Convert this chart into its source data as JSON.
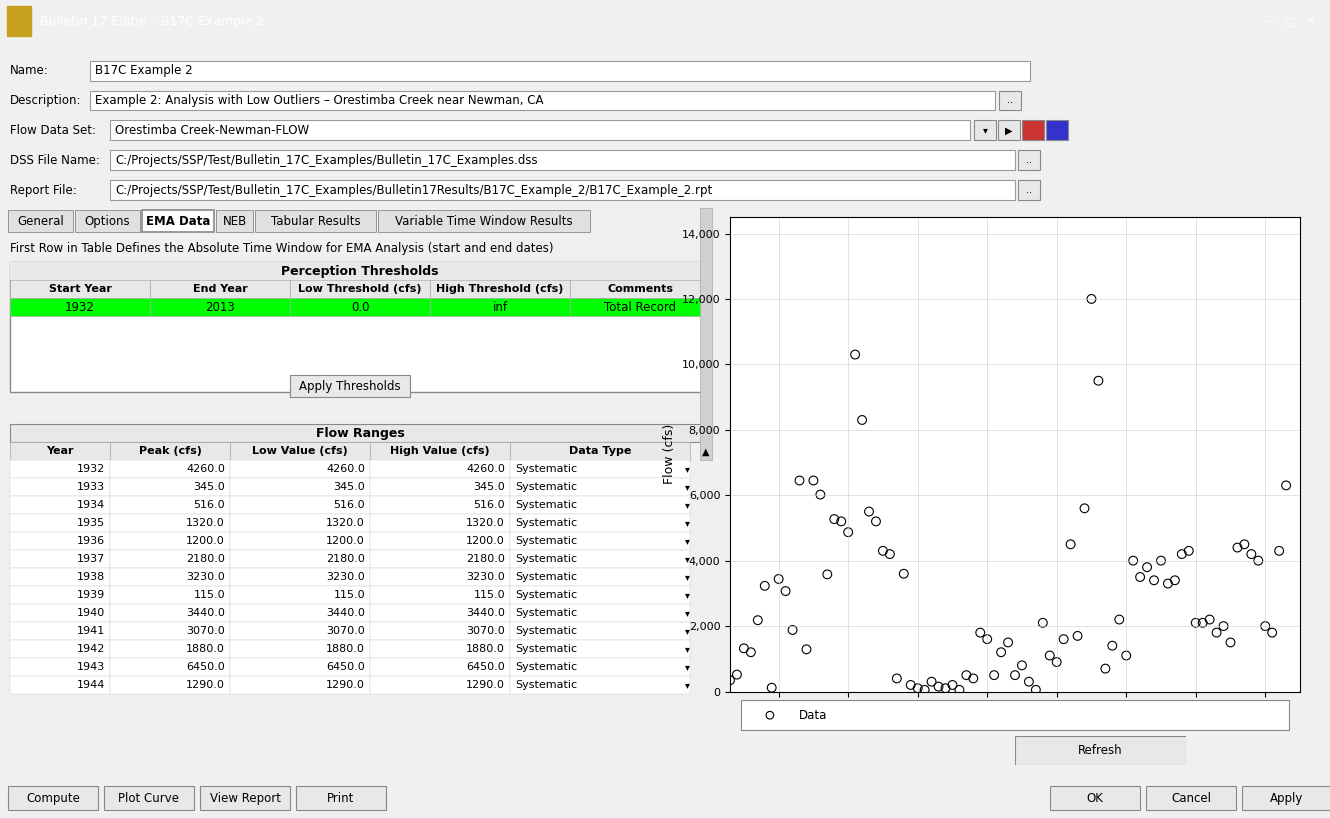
{
  "title_bar": "Bulletin 17 Editor - B17C Example 2",
  "name_value": "B17C Example 2",
  "description_value": "Example 2: Analysis with Low Outliers – Orestimba Creek near Newman, CA",
  "flow_dataset_value": "Orestimba Creek-Newman-FLOW",
  "dss_file_value": "C:/Projects/SSP/Test/Bulletin_17C_Examples/Bulletin_17C_Examples.dss",
  "report_file_value": "C:/Projects/SSP/Test/Bulletin_17C_Examples/Bulletin17Results/B17C_Example_2/B17C_Example_2.rpt",
  "tabs": [
    "General",
    "Options",
    "EMA Data",
    "NEB",
    "Tabular Results",
    "Variable Time Window Results"
  ],
  "active_tab": "EMA Data",
  "table_header": "Perception Thresholds",
  "col_headers_top": [
    "Start Year",
    "End Year",
    "Low Threshold (cfs)",
    "High Threshold (cfs)",
    "Comments"
  ],
  "table_row": [
    "1932",
    "2013",
    "0.0",
    "inf",
    "Total Record"
  ],
  "flow_ranges_header": "Flow Ranges",
  "flow_col_headers": [
    "Year",
    "Peak (cfs)",
    "Low Value (cfs)",
    "High Value (cfs)",
    "Data Type"
  ],
  "flow_data": [
    [
      1932,
      4260.0,
      4260.0,
      4260.0,
      "Systematic"
    ],
    [
      1933,
      345.0,
      345.0,
      345.0,
      "Systematic"
    ],
    [
      1934,
      516.0,
      516.0,
      516.0,
      "Systematic"
    ],
    [
      1935,
      1320.0,
      1320.0,
      1320.0,
      "Systematic"
    ],
    [
      1936,
      1200.0,
      1200.0,
      1200.0,
      "Systematic"
    ],
    [
      1937,
      2180.0,
      2180.0,
      2180.0,
      "Systematic"
    ],
    [
      1938,
      3230.0,
      3230.0,
      3230.0,
      "Systematic"
    ],
    [
      1939,
      115.0,
      115.0,
      115.0,
      "Systematic"
    ],
    [
      1940,
      3440.0,
      3440.0,
      3440.0,
      "Systematic"
    ],
    [
      1941,
      3070.0,
      3070.0,
      3070.0,
      "Systematic"
    ],
    [
      1942,
      1880.0,
      1880.0,
      1880.0,
      "Systematic"
    ],
    [
      1943,
      6450.0,
      6450.0,
      6450.0,
      "Systematic"
    ],
    [
      1944,
      1290.0,
      1290.0,
      1290.0,
      "Systematic"
    ]
  ],
  "scatter_data": {
    "years": [
      1932,
      1933,
      1934,
      1935,
      1936,
      1937,
      1938,
      1939,
      1940,
      1941,
      1942,
      1943,
      1944,
      1945,
      1946,
      1947,
      1948,
      1949,
      1950,
      1951,
      1952,
      1953,
      1954,
      1955,
      1956,
      1957,
      1958,
      1959,
      1960,
      1961,
      1962,
      1963,
      1964,
      1965,
      1966,
      1967,
      1968,
      1969,
      1970,
      1971,
      1972,
      1973,
      1974,
      1975,
      1976,
      1977,
      1978,
      1979,
      1980,
      1981,
      1982,
      1983,
      1984,
      1985,
      1986,
      1987,
      1988,
      1989,
      1990,
      1991,
      1992,
      1993,
      1994,
      1995,
      1996,
      1997,
      1998,
      1999,
      2000,
      2001,
      2002,
      2003,
      2004,
      2005,
      2006,
      2007,
      2008,
      2009,
      2010,
      2011,
      2012,
      2013
    ],
    "flows": [
      4260,
      345,
      516,
      1320,
      1200,
      2180,
      3230,
      115,
      3440,
      3070,
      1880,
      6450,
      1290,
      6450,
      6020,
      3580,
      5270,
      5200,
      4870,
      10300,
      8300,
      5500,
      5200,
      4300,
      4200,
      400,
      3600,
      200,
      100,
      50,
      300,
      150,
      100,
      200,
      50,
      500,
      400,
      1800,
      1600,
      500,
      1200,
      1500,
      500,
      800,
      300,
      50,
      2100,
      1100,
      900,
      1600,
      4500,
      1700,
      5600,
      12000,
      9500,
      700,
      1400,
      2200,
      1100,
      4000,
      3500,
      3800,
      3400,
      4000,
      3300,
      3400,
      4200,
      4300,
      2100,
      2100,
      2200,
      1800,
      2000,
      1500,
      4400,
      4500,
      4200,
      4000,
      2000,
      1800,
      4300,
      6300
    ]
  },
  "y_label": "Flow (cfs)",
  "bg_color": "#f0f0f0",
  "dialog_bg": "#f0f0f0",
  "titlebar_bg": "#2c5f8a",
  "white": "#ffffff",
  "green_row": "#00ff00",
  "grid_header_bg": "#e8e8e8",
  "button_color": "#e0e0e0",
  "bottom_buttons": [
    "Compute",
    "Plot Curve",
    "View Report",
    "Print"
  ],
  "bottom_buttons_right": [
    "OK",
    "Cancel",
    "Apply"
  ]
}
